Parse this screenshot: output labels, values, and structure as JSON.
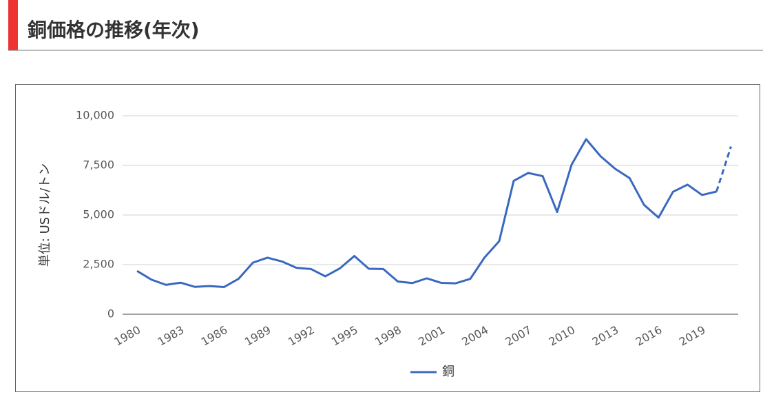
{
  "header": {
    "title": "銅価格の推移(年次)"
  },
  "chart_data": {
    "type": "line",
    "ylabel": "単位: USドル/トン",
    "x": [
      1980,
      1981,
      1982,
      1983,
      1984,
      1985,
      1986,
      1987,
      1988,
      1989,
      1990,
      1991,
      1992,
      1993,
      1994,
      1995,
      1996,
      1997,
      1998,
      1999,
      2000,
      2001,
      2002,
      2003,
      2004,
      2005,
      2006,
      2007,
      2008,
      2009,
      2010,
      2011,
      2012,
      2013,
      2014,
      2015,
      2016,
      2017,
      2018,
      2019,
      2020,
      2021
    ],
    "series": [
      {
        "name": "銅",
        "color": "#3a68c0",
        "values": [
          2180,
          1740,
          1480,
          1590,
          1380,
          1420,
          1370,
          1780,
          2600,
          2850,
          2660,
          2340,
          2280,
          1910,
          2310,
          2935,
          2290,
          2280,
          1650,
          1570,
          1810,
          1580,
          1560,
          1780,
          2870,
          3680,
          6720,
          7120,
          6960,
          5150,
          7540,
          8820,
          7960,
          7330,
          6860,
          5510,
          4870,
          6170,
          6530,
          6010,
          6180,
          8450
        ]
      }
    ],
    "dashed_after": 2020,
    "xlim": [
      1979,
      2021.5
    ],
    "xticks": [
      1980,
      1983,
      1986,
      1989,
      1992,
      1995,
      1998,
      2001,
      2004,
      2007,
      2010,
      2013,
      2016,
      2019
    ],
    "ylim": [
      0,
      10000
    ],
    "yticks": [
      0,
      {
        "value": 2500,
        "label": "2,500"
      },
      {
        "value": 5000,
        "label": "5,000"
      },
      {
        "value": 7500,
        "label": "7,500"
      },
      {
        "value": 10000,
        "label": "10,000"
      }
    ],
    "grid": true,
    "legend": "bottom"
  }
}
